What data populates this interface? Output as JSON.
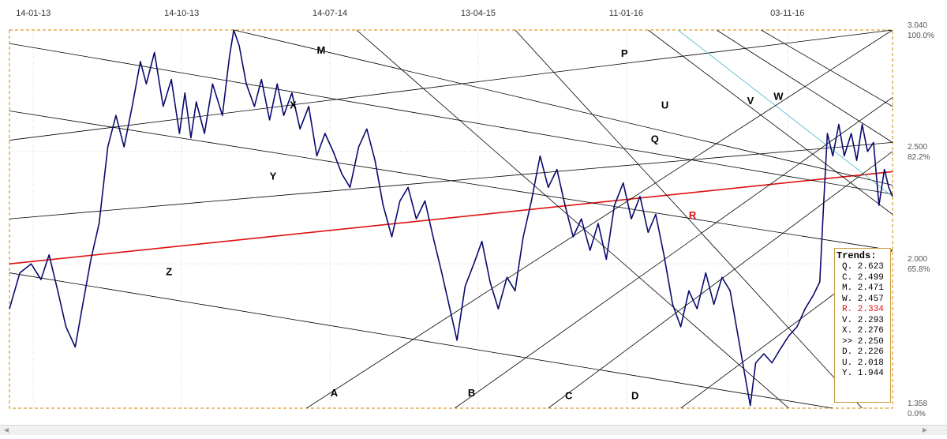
{
  "chart_data": {
    "type": "line",
    "y_scale": "percent-retracement",
    "x_ticks": [
      "14-01-13",
      "14-10-13",
      "14-07-14",
      "13-04-15",
      "11-01-16",
      "03-11-16"
    ],
    "y_ticks": [
      {
        "price": "3.040",
        "pct": "100.0%"
      },
      {
        "price": "2.500",
        "pct": "82.2%"
      },
      {
        "price": "2.000",
        "pct": "65.8%"
      },
      {
        "price": "1.358",
        "pct": "0.0%"
      }
    ],
    "ylim": [
      1.358,
      3.04
    ],
    "xlim": [
      "2012-12-01",
      "2017-05-15"
    ],
    "grid": true,
    "series": [
      {
        "color": "#0a0a6e",
        "points": [
          [
            "2012-12-01",
            1.8
          ],
          [
            "2012-12-20",
            1.96
          ],
          [
            "2013-01-10",
            2.0
          ],
          [
            "2013-01-28",
            1.93
          ],
          [
            "2013-02-12",
            2.04
          ],
          [
            "2013-02-28",
            1.88
          ],
          [
            "2013-03-15",
            1.72
          ],
          [
            "2013-04-01",
            1.63
          ],
          [
            "2013-04-15",
            1.82
          ],
          [
            "2013-04-30",
            2.02
          ],
          [
            "2013-05-15",
            2.18
          ],
          [
            "2013-05-31",
            2.52
          ],
          [
            "2013-06-15",
            2.66
          ],
          [
            "2013-06-30",
            2.52
          ],
          [
            "2013-07-15",
            2.7
          ],
          [
            "2013-07-30",
            2.9
          ],
          [
            "2013-08-10",
            2.8
          ],
          [
            "2013-08-25",
            2.94
          ],
          [
            "2013-09-10",
            2.7
          ],
          [
            "2013-09-25",
            2.82
          ],
          [
            "2013-10-10",
            2.58
          ],
          [
            "2013-10-20",
            2.76
          ],
          [
            "2013-10-31",
            2.56
          ],
          [
            "2013-11-10",
            2.72
          ],
          [
            "2013-11-25",
            2.58
          ],
          [
            "2013-12-10",
            2.8
          ],
          [
            "2013-12-28",
            2.66
          ],
          [
            "2014-01-10",
            2.92
          ],
          [
            "2014-01-18",
            3.04
          ],
          [
            "2014-01-28",
            2.97
          ],
          [
            "2014-02-10",
            2.8
          ],
          [
            "2014-02-25",
            2.7
          ],
          [
            "2014-03-10",
            2.82
          ],
          [
            "2014-03-25",
            2.64
          ],
          [
            "2014-04-08",
            2.8
          ],
          [
            "2014-04-20",
            2.66
          ],
          [
            "2014-05-05",
            2.76
          ],
          [
            "2014-05-20",
            2.6
          ],
          [
            "2014-06-05",
            2.7
          ],
          [
            "2014-06-20",
            2.48
          ],
          [
            "2014-07-05",
            2.58
          ],
          [
            "2014-07-20",
            2.5
          ],
          [
            "2014-08-05",
            2.4
          ],
          [
            "2014-08-20",
            2.34
          ],
          [
            "2014-09-05",
            2.52
          ],
          [
            "2014-09-20",
            2.6
          ],
          [
            "2014-10-05",
            2.46
          ],
          [
            "2014-10-20",
            2.26
          ],
          [
            "2014-11-05",
            2.12
          ],
          [
            "2014-11-20",
            2.28
          ],
          [
            "2014-12-05",
            2.34
          ],
          [
            "2014-12-20",
            2.2
          ],
          [
            "2015-01-05",
            2.28
          ],
          [
            "2015-01-20",
            2.12
          ],
          [
            "2015-02-05",
            1.96
          ],
          [
            "2015-02-20",
            1.8
          ],
          [
            "2015-03-05",
            1.66
          ],
          [
            "2015-03-20",
            1.9
          ],
          [
            "2015-04-05",
            2.0
          ],
          [
            "2015-04-20",
            2.1
          ],
          [
            "2015-05-05",
            1.92
          ],
          [
            "2015-05-20",
            1.8
          ],
          [
            "2015-06-05",
            1.94
          ],
          [
            "2015-06-20",
            1.88
          ],
          [
            "2015-07-05",
            2.12
          ],
          [
            "2015-07-20",
            2.28
          ],
          [
            "2015-08-05",
            2.48
          ],
          [
            "2015-08-20",
            2.34
          ],
          [
            "2015-09-05",
            2.42
          ],
          [
            "2015-09-20",
            2.26
          ],
          [
            "2015-10-05",
            2.12
          ],
          [
            "2015-10-20",
            2.2
          ],
          [
            "2015-11-05",
            2.06
          ],
          [
            "2015-11-20",
            2.18
          ],
          [
            "2015-12-05",
            2.02
          ],
          [
            "2015-12-20",
            2.26
          ],
          [
            "2016-01-05",
            2.36
          ],
          [
            "2016-01-20",
            2.2
          ],
          [
            "2016-02-05",
            2.3
          ],
          [
            "2016-02-20",
            2.14
          ],
          [
            "2016-03-05",
            2.22
          ],
          [
            "2016-03-20",
            2.04
          ],
          [
            "2016-04-05",
            1.82
          ],
          [
            "2016-04-20",
            1.72
          ],
          [
            "2016-05-05",
            1.88
          ],
          [
            "2016-05-20",
            1.8
          ],
          [
            "2016-06-05",
            1.96
          ],
          [
            "2016-06-20",
            1.82
          ],
          [
            "2016-07-05",
            1.94
          ],
          [
            "2016-07-20",
            1.88
          ],
          [
            "2016-08-05",
            1.66
          ],
          [
            "2016-08-15",
            1.52
          ],
          [
            "2016-08-26",
            1.37
          ],
          [
            "2016-09-05",
            1.56
          ],
          [
            "2016-09-20",
            1.6
          ],
          [
            "2016-10-05",
            1.56
          ],
          [
            "2016-10-20",
            1.62
          ],
          [
            "2016-11-05",
            1.68
          ],
          [
            "2016-11-20",
            1.72
          ],
          [
            "2016-12-05",
            1.8
          ],
          [
            "2016-12-20",
            1.86
          ],
          [
            "2017-01-01",
            1.92
          ],
          [
            "2017-01-08",
            2.26
          ],
          [
            "2017-01-15",
            2.58
          ],
          [
            "2017-01-25",
            2.48
          ],
          [
            "2017-02-05",
            2.62
          ],
          [
            "2017-02-15",
            2.48
          ],
          [
            "2017-02-28",
            2.58
          ],
          [
            "2017-03-10",
            2.46
          ],
          [
            "2017-03-20",
            2.62
          ],
          [
            "2017-03-30",
            2.5
          ],
          [
            "2017-04-10",
            2.54
          ],
          [
            "2017-04-20",
            2.26
          ],
          [
            "2017-04-30",
            2.42
          ],
          [
            "2017-05-08",
            2.34
          ],
          [
            "2017-05-15",
            2.3
          ]
        ]
      }
    ],
    "trendlines": [
      {
        "label": "M",
        "color": "#000000",
        "from": [
          "2012-12-01",
          2.55
        ],
        "to": [
          "2017-05-15",
          3.04
        ]
      },
      {
        "label": "Q",
        "color": "#000000",
        "from": [
          "2012-12-01",
          2.2
        ],
        "to": [
          "2017-05-15",
          2.54
        ]
      },
      {
        "label": "R",
        "color": "#e01010",
        "from": [
          "2012-12-01",
          2.0
        ],
        "to": [
          "2017-05-15",
          2.41
        ]
      },
      {
        "label": "X",
        "color": "#000000",
        "from": [
          "2012-12-01",
          2.98
        ],
        "to": [
          "2017-05-15",
          2.31
        ]
      },
      {
        "label": "Y",
        "color": "#000000",
        "from": [
          "2012-12-01",
          2.68
        ],
        "to": [
          "2017-05-15",
          2.06
        ]
      },
      {
        "label": "Z",
        "color": "#000000",
        "from": [
          "2012-12-01",
          1.96
        ],
        "to": [
          "2017-01-25",
          1.358
        ]
      },
      {
        "label": "",
        "color": "#000000",
        "from": [
          "2014-01-18",
          3.04
        ],
        "to": [
          "2017-05-15",
          2.35
        ]
      },
      {
        "label": "P",
        "color": "#000000",
        "from": [
          "2014-09-01",
          3.04
        ],
        "to": [
          "2016-11-05",
          1.358
        ]
      },
      {
        "label": "",
        "color": "#000000",
        "from": [
          "2015-06-20",
          3.04
        ],
        "to": [
          "2017-03-20",
          1.358
        ]
      },
      {
        "label": "U",
        "color": "#000000",
        "from": [
          "2016-02-20",
          3.04
        ],
        "to": [
          "2017-05-15",
          2.22
        ]
      },
      {
        "label": "V",
        "color": "#000000",
        "from": [
          "2016-06-25",
          3.04
        ],
        "to": [
          "2017-05-15",
          2.54
        ]
      },
      {
        "label": "W",
        "color": "#000000",
        "from": [
          "2016-09-15",
          3.04
        ],
        "to": [
          "2017-05-15",
          2.7
        ]
      },
      {
        "label": "",
        "color": "#40b8c8",
        "from": [
          "2016-04-15",
          3.04
        ],
        "to": [
          "2017-05-15",
          2.3
        ]
      },
      {
        "label": "A",
        "color": "#000000",
        "from": [
          "2014-06-01",
          1.358
        ],
        "to": [
          "2017-05-15",
          3.04
        ]
      },
      {
        "label": "B",
        "color": "#000000",
        "from": [
          "2015-03-01",
          1.358
        ],
        "to": [
          "2017-05-15",
          2.74
        ]
      },
      {
        "label": "C",
        "color": "#000000",
        "from": [
          "2015-08-20",
          1.358
        ],
        "to": [
          "2017-05-15",
          2.5
        ]
      },
      {
        "label": "D",
        "color": "#000000",
        "from": [
          "2016-04-20",
          1.358
        ],
        "to": [
          "2017-05-15",
          2.06
        ]
      }
    ],
    "line_labels": [
      {
        "text": "M",
        "x": "2014-06-20",
        "y": 2.935,
        "color": "#000000"
      },
      {
        "text": "P",
        "x": "2016-01-01",
        "y": 2.92,
        "color": "#000000"
      },
      {
        "text": "X",
        "x": "2014-05-01",
        "y": 2.69,
        "color": "#000000"
      },
      {
        "text": "U",
        "x": "2016-03-15",
        "y": 2.69,
        "color": "#000000"
      },
      {
        "text": "V",
        "x": "2016-08-20",
        "y": 2.71,
        "color": "#000000"
      },
      {
        "text": "W",
        "x": "2016-10-08",
        "y": 2.73,
        "color": "#000000"
      },
      {
        "text": "Q",
        "x": "2016-02-25",
        "y": 2.54,
        "color": "#000000"
      },
      {
        "text": "Y",
        "x": "2014-03-25",
        "y": 2.375,
        "color": "#000000"
      },
      {
        "text": "R",
        "x": "2016-05-05",
        "y": 2.2,
        "color": "#e01010"
      },
      {
        "text": "Z",
        "x": "2013-09-15",
        "y": 1.95,
        "color": "#000000"
      },
      {
        "text": "A",
        "x": "2014-07-15",
        "y": 1.41,
        "color": "#000000"
      },
      {
        "text": "B",
        "x": "2015-03-25",
        "y": 1.41,
        "color": "#000000"
      },
      {
        "text": "C",
        "x": "2015-09-20",
        "y": 1.398,
        "color": "#000000"
      },
      {
        "text": "D",
        "x": "2016-01-20",
        "y": 1.398,
        "color": "#000000"
      }
    ]
  },
  "trends": {
    "title": "Trends:",
    "rows": [
      {
        "text": "Q. 2.623",
        "color": "#000000"
      },
      {
        "text": "C. 2.499",
        "color": "#000000"
      },
      {
        "text": "M. 2.471",
        "color": "#000000"
      },
      {
        "text": "W. 2.457",
        "color": "#000000"
      },
      {
        "text": "R. 2.334",
        "color": "#e01010"
      },
      {
        "text": "V. 2.293",
        "color": "#000000"
      },
      {
        "text": "X. 2.276",
        "color": "#000000"
      },
      {
        "text": ">> 2.250",
        "color": "#000000"
      },
      {
        "text": "D. 2.226",
        "color": "#000000"
      },
      {
        "text": "U. 2.018",
        "color": "#000000"
      },
      {
        "text": "Y. 1.944",
        "color": "#000000"
      }
    ]
  },
  "scrollbar": {
    "left_arrow": "◀",
    "right_arrow": "▶"
  }
}
